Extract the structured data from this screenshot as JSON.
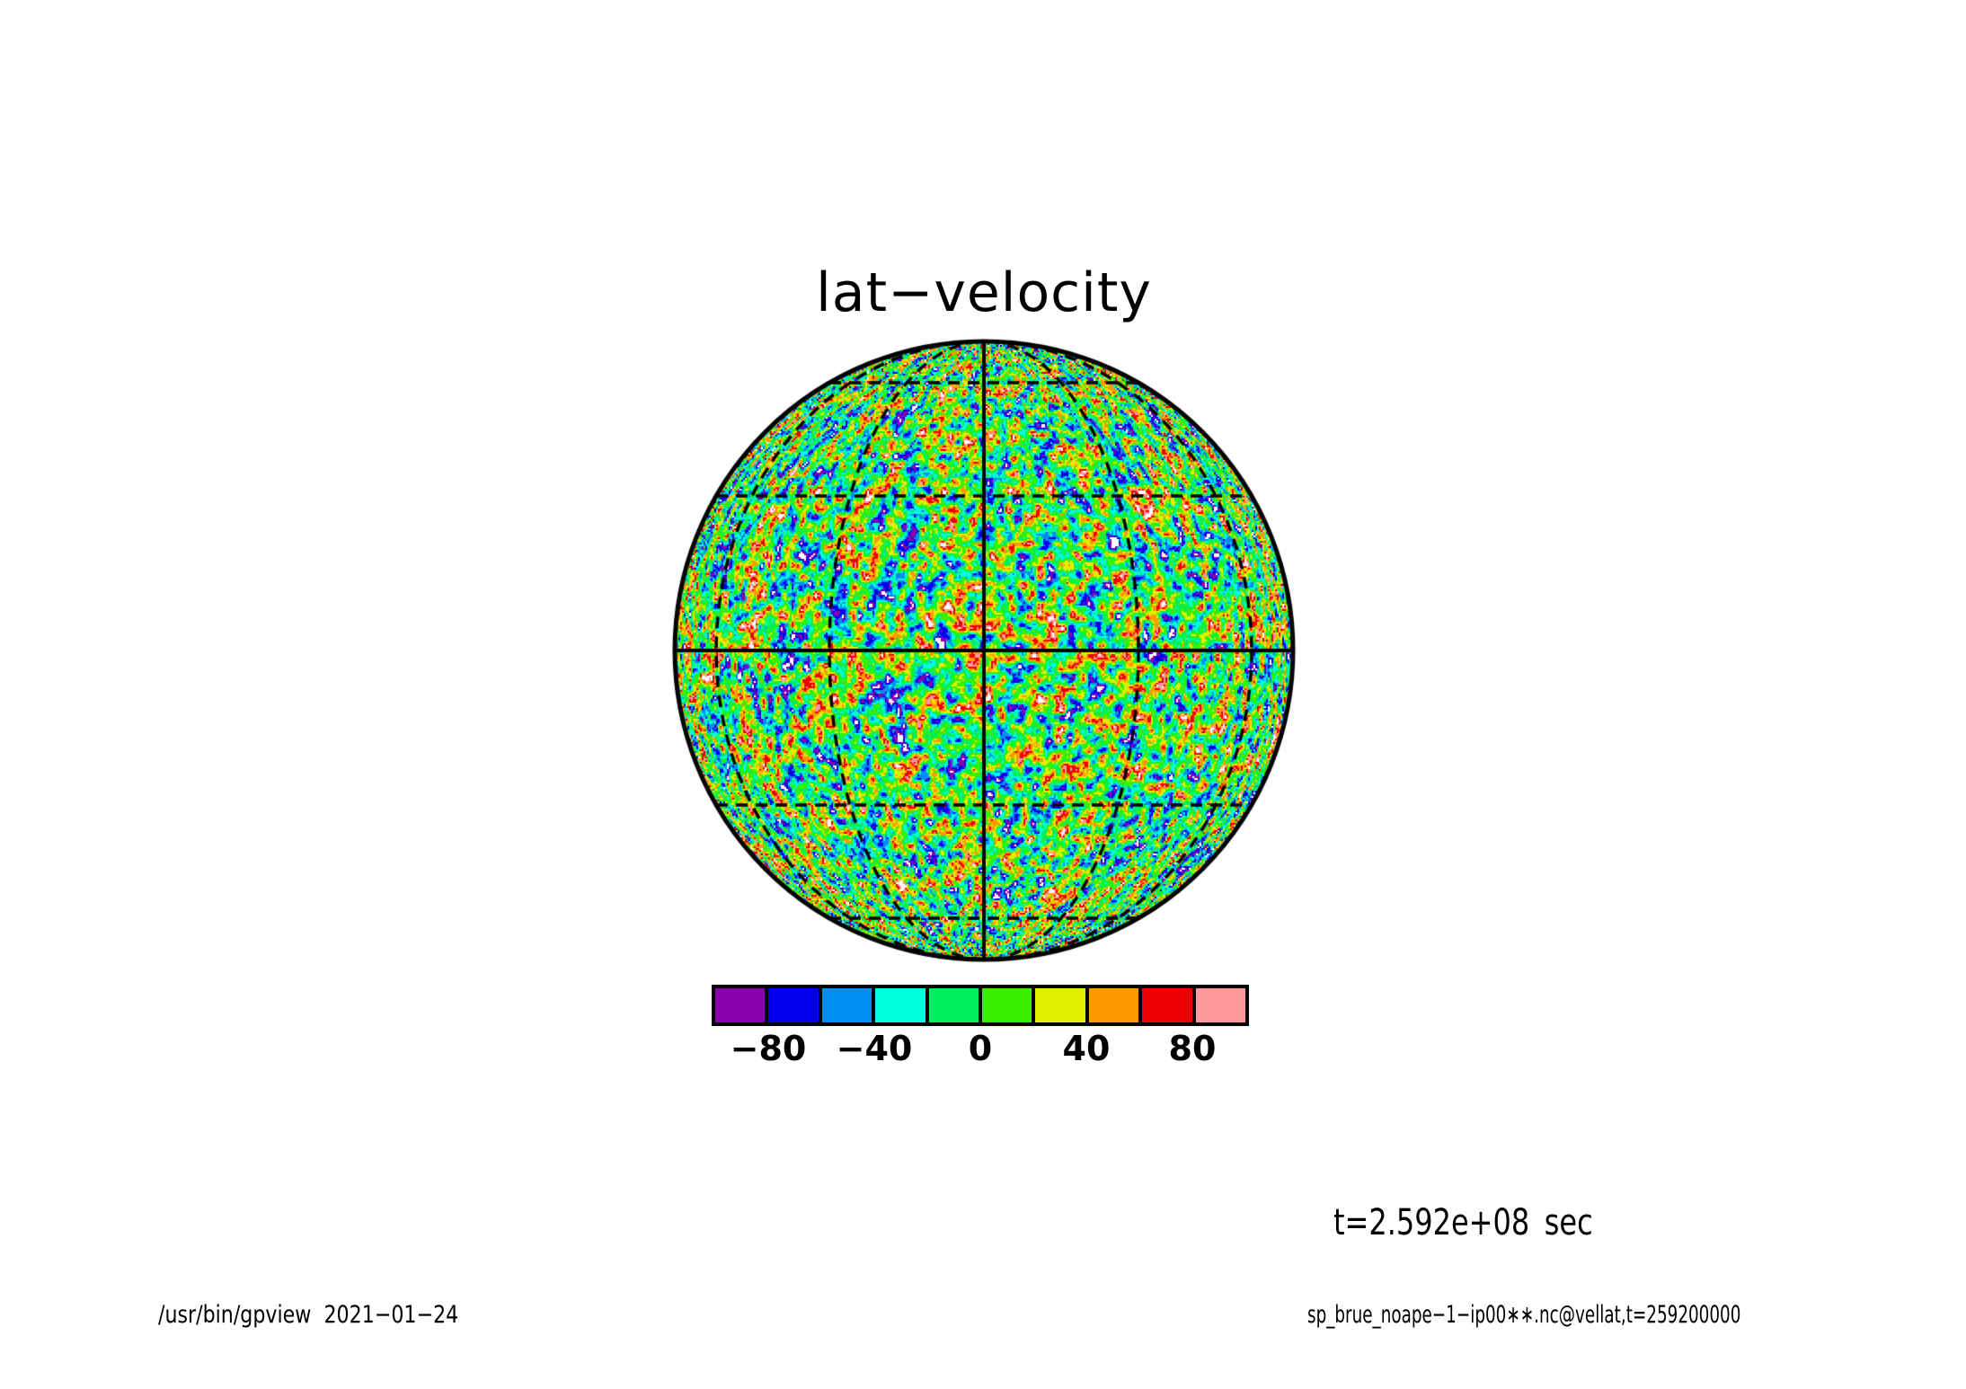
{
  "title": "lat−velocity",
  "time_label": "t=2.592e+08 sec",
  "footer": {
    "left": "/usr/bin/gpview  2021−01−24",
    "right": "sp_brue_noape−1−ip00∗∗.nc@vellat,t=259200000"
  },
  "page": {
    "background": "#ffffff",
    "text_color": "#000000"
  },
  "chart_data": {
    "type": "heatmap",
    "title": "lat−velocity",
    "projection": "orthographic sphere viewed from the equator",
    "field_description": "fine-grained random latitudinal-velocity anomaly field covering the disk; values mostly within ±100, cells beyond the tone range rendered white",
    "time_annotation": "t=2.592e+08 sec",
    "graticule": {
      "lon_step_deg": 30,
      "lat_step_deg": 30,
      "solid_lines": [
        "limb circle",
        "equator",
        "central meridian"
      ],
      "dashed_lines": [
        "±30° parallels",
        "±60° parallels",
        "±30° meridians",
        "±60° meridians"
      ],
      "line_color": "#000000"
    },
    "colorbar": {
      "levels": [
        -100,
        -80,
        -60,
        -40,
        -20,
        0,
        20,
        40,
        60,
        80,
        100
      ],
      "colors": [
        "#8800aa",
        "#0000ee",
        "#008cf0",
        "#00ffdc",
        "#00ee5c",
        "#3cee00",
        "#e0ee00",
        "#ff9900",
        "#ee0000",
        "#ff9898"
      ],
      "tick_labels": [
        "−80",
        "−40",
        "0",
        "40",
        "80"
      ],
      "tick_values": [
        -80,
        -40,
        0,
        40,
        80
      ],
      "out_of_range_color": "#ffffff",
      "border_color": "#000000"
    }
  }
}
